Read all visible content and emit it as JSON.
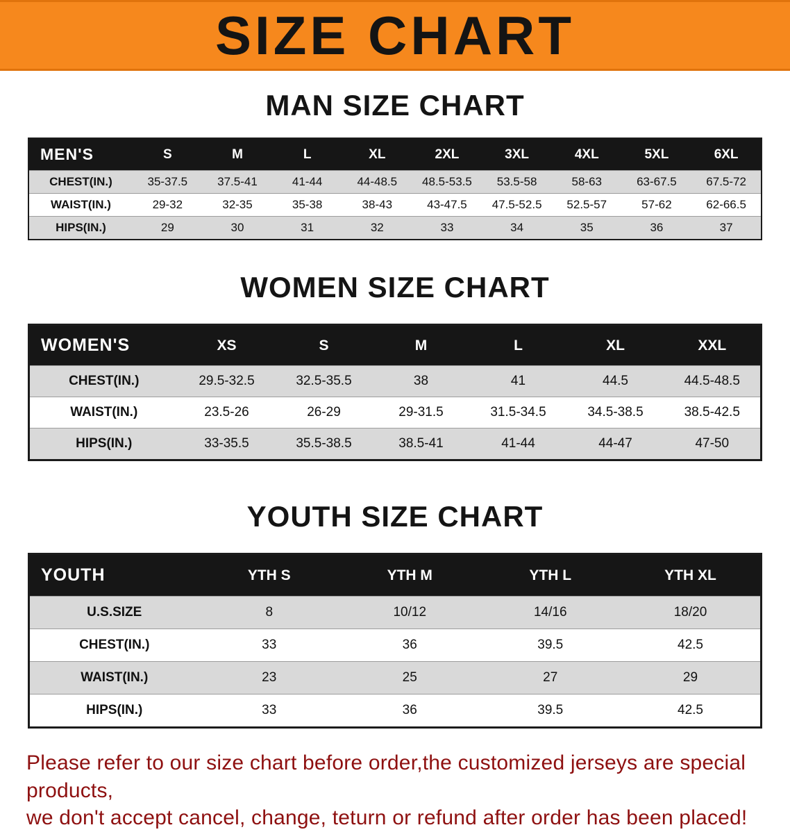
{
  "banner": {
    "title": "SIZE CHART"
  },
  "colors": {
    "banner_bg": "#f6881d",
    "table_header_bg": "#161616",
    "row_alt_gray": "#d9d9d9",
    "disclaimer_red": "#8e1010"
  },
  "sections": [
    {
      "heading": "MAN SIZE CHART",
      "table": {
        "header_label": "MEN'S",
        "columns": [
          "S",
          "M",
          "L",
          "XL",
          "2XL",
          "3XL",
          "4XL",
          "5XL",
          "6XL"
        ],
        "rows": [
          {
            "label": "CHEST(IN.)",
            "values": [
              "35-37.5",
              "37.5-41",
              "41-44",
              "44-48.5",
              "48.5-53.5",
              "53.5-58",
              "58-63",
              "63-67.5",
              "67.5-72"
            ]
          },
          {
            "label": "WAIST(IN.)",
            "values": [
              "29-32",
              "32-35",
              "35-38",
              "38-43",
              "43-47.5",
              "47.5-52.5",
              "52.5-57",
              "57-62",
              "62-66.5"
            ]
          },
          {
            "label": "HIPS(IN.)",
            "values": [
              "29",
              "30",
              "31",
              "32",
              "33",
              "34",
              "35",
              "36",
              "37"
            ]
          }
        ]
      }
    },
    {
      "heading": "WOMEN SIZE CHART",
      "table": {
        "header_label": "WOMEN'S",
        "columns": [
          "XS",
          "S",
          "M",
          "L",
          "XL",
          "XXL"
        ],
        "rows": [
          {
            "label": "CHEST(IN.)",
            "values": [
              "29.5-32.5",
              "32.5-35.5",
              "38",
              "41",
              "44.5",
              "44.5-48.5"
            ]
          },
          {
            "label": "WAIST(IN.)",
            "values": [
              "23.5-26",
              "26-29",
              "29-31.5",
              "31.5-34.5",
              "34.5-38.5",
              "38.5-42.5"
            ]
          },
          {
            "label": "HIPS(IN.)",
            "values": [
              "33-35.5",
              "35.5-38.5",
              "38.5-41",
              "41-44",
              "44-47",
              "47-50"
            ]
          }
        ]
      }
    },
    {
      "heading": "YOUTH SIZE CHART",
      "table": {
        "header_label": "YOUTH",
        "columns": [
          "YTH S",
          "YTH M",
          "YTH L",
          "YTH XL"
        ],
        "rows": [
          {
            "label": "U.S.SIZE",
            "values": [
              "8",
              "10/12",
              "14/16",
              "18/20"
            ]
          },
          {
            "label": "CHEST(IN.)",
            "values": [
              "33",
              "36",
              "39.5",
              "42.5"
            ]
          },
          {
            "label": "WAIST(IN.)",
            "values": [
              "23",
              "25",
              "27",
              "29"
            ]
          },
          {
            "label": "HIPS(IN.)",
            "values": [
              "33",
              "36",
              "39.5",
              "42.5"
            ]
          }
        ]
      }
    }
  ],
  "footer": {
    "lines": [
      "Please refer to our size chart before order,the customized jerseys are special products,",
      "we don't accept cancel, change, teturn or refund after order has been placed!"
    ]
  }
}
